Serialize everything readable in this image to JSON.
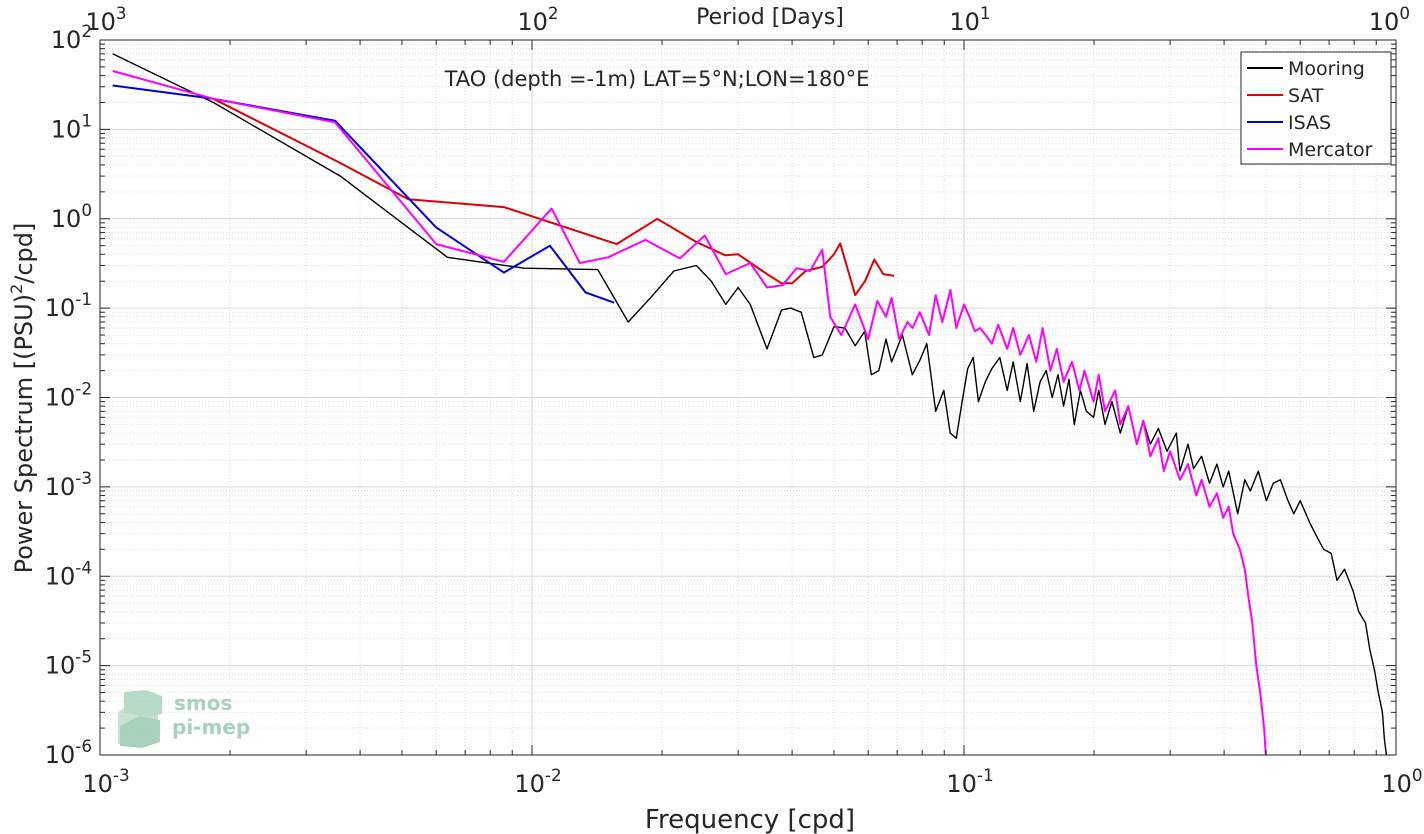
{
  "chart_data": {
    "type": "line",
    "title": "TAO (depth =-1m) LAT=5°N;LON=180°E",
    "xlabel": "Frequency [cpd]",
    "ylabel": "Power Spectrum [(PSU)",
    "ylabel_sup": "2",
    "ylabel_tail": "/cpd]",
    "top_xlabel": "Period [Days]",
    "xscale": "log",
    "yscale": "log",
    "xlim": [
      0.001,
      1
    ],
    "ylim": [
      1e-06,
      100
    ],
    "grid": true,
    "legend_position": "top-right",
    "x_ticks": [
      {
        "value": 0.001,
        "base": "10",
        "exp": "-3"
      },
      {
        "value": 0.01,
        "base": "10",
        "exp": "-2"
      },
      {
        "value": 0.1,
        "base": "10",
        "exp": "-1"
      },
      {
        "value": 1,
        "base": "10",
        "exp": "0"
      }
    ],
    "y_ticks": [
      {
        "value": 1e-06,
        "base": "10",
        "exp": "-6"
      },
      {
        "value": 1e-05,
        "base": "10",
        "exp": "-5"
      },
      {
        "value": 0.0001,
        "base": "10",
        "exp": "-4"
      },
      {
        "value": 0.001,
        "base": "10",
        "exp": "-3"
      },
      {
        "value": 0.01,
        "base": "10",
        "exp": "-2"
      },
      {
        "value": 0.1,
        "base": "10",
        "exp": "-1"
      },
      {
        "value": 1,
        "base": "10",
        "exp": "0"
      },
      {
        "value": 10,
        "base": "10",
        "exp": "1"
      },
      {
        "value": 100,
        "base": "10",
        "exp": "2"
      }
    ],
    "top_ticks": [
      {
        "value": 0.001,
        "base": "10",
        "exp": "3"
      },
      {
        "value": 0.01,
        "base": "10",
        "exp": "2"
      },
      {
        "value": 0.1,
        "base": "10",
        "exp": "1"
      },
      {
        "value": 1,
        "base": "10",
        "exp": "0"
      }
    ],
    "series": [
      {
        "name": "Mooring",
        "color": "#000000",
        "x": [
          0.00107,
          0.00183,
          0.0036,
          0.00637,
          0.0096,
          0.0142,
          0.0167,
          0.0188,
          0.0213,
          0.024,
          0.026,
          0.0281,
          0.03,
          0.032,
          0.035,
          0.0378,
          0.0397,
          0.042,
          0.0449,
          0.047,
          0.05,
          0.053,
          0.056,
          0.0589,
          0.061,
          0.0635,
          0.066,
          0.068,
          0.072,
          0.0759,
          0.079,
          0.082,
          0.086,
          0.0898,
          0.0929,
          0.096,
          0.099,
          0.102,
          0.105,
          0.108,
          0.112,
          0.116,
          0.121,
          0.1259,
          0.13,
          0.135,
          0.14,
          0.145,
          0.15,
          0.155,
          0.16,
          0.165,
          0.17,
          0.175,
          0.18,
          0.186,
          0.192,
          0.1995,
          0.205,
          0.212,
          0.22,
          0.23,
          0.24,
          0.2512,
          0.26,
          0.27,
          0.2818,
          0.295,
          0.31,
          0.3162,
          0.33,
          0.34,
          0.3548,
          0.37,
          0.385,
          0.3981,
          0.41,
          0.43,
          0.4467,
          0.46,
          0.48,
          0.5012,
          0.52,
          0.54,
          0.5623,
          0.58,
          0.6,
          0.631,
          0.65,
          0.68,
          0.708,
          0.73,
          0.76,
          0.7943,
          0.82,
          0.85,
          0.87,
          0.8913,
          0.91,
          0.93,
          0.94,
          0.95
        ],
        "y": [
          70,
          20,
          3,
          0.37,
          0.28,
          0.27,
          0.07,
          0.13,
          0.26,
          0.3,
          0.2,
          0.11,
          0.17,
          0.11,
          0.035,
          0.095,
          0.1,
          0.09,
          0.028,
          0.03,
          0.062,
          0.06,
          0.038,
          0.055,
          0.018,
          0.02,
          0.045,
          0.025,
          0.05,
          0.018,
          0.026,
          0.04,
          0.007,
          0.012,
          0.004,
          0.0035,
          0.009,
          0.021,
          0.028,
          0.009,
          0.015,
          0.021,
          0.028,
          0.012,
          0.025,
          0.009,
          0.024,
          0.007,
          0.015,
          0.02,
          0.01,
          0.018,
          0.008,
          0.016,
          0.005,
          0.012,
          0.007,
          0.006,
          0.012,
          0.005,
          0.009,
          0.004,
          0.008,
          0.003,
          0.0055,
          0.003,
          0.0045,
          0.0025,
          0.004,
          0.0015,
          0.003,
          0.0016,
          0.0022,
          0.0011,
          0.0018,
          0.001,
          0.0015,
          0.0005,
          0.0012,
          0.0009,
          0.0015,
          0.0007,
          0.0011,
          0.0012,
          0.0007,
          0.0005,
          0.0007,
          0.0004,
          0.0003,
          0.0002,
          0.00018,
          9e-05,
          0.00012,
          7e-05,
          4e-05,
          3e-05,
          1.5e-05,
          9e-06,
          5e-06,
          3e-06,
          1.5e-06,
          1e-06
        ]
      },
      {
        "name": "SAT",
        "color": "#e00000",
        "x": [
          0.00183,
          0.0036,
          0.00517,
          0.00861,
          0.0157,
          0.0195,
          0.024,
          0.028,
          0.03,
          0.035,
          0.0378,
          0.04,
          0.043,
          0.047,
          0.05,
          0.0517,
          0.056,
          0.059,
          0.062,
          0.065,
          0.0689
        ],
        "y": [
          22,
          4.2,
          1.65,
          1.35,
          0.52,
          1.0,
          0.55,
          0.39,
          0.4,
          0.24,
          0.19,
          0.19,
          0.26,
          0.29,
          0.4,
          0.53,
          0.14,
          0.2,
          0.35,
          0.24,
          0.23
        ]
      },
      {
        "name": "ISAS",
        "color": "#0000e0",
        "x": [
          0.00107,
          0.00183,
          0.0035,
          0.006,
          0.00861,
          0.011,
          0.0133,
          0.0155
        ],
        "y": [
          31,
          22,
          12.5,
          0.8,
          0.25,
          0.5,
          0.15,
          0.115
        ]
      },
      {
        "name": "Mercator",
        "color": "#ff00ff",
        "x": [
          0.00107,
          0.00183,
          0.0035,
          0.006,
          0.00861,
          0.0111,
          0.0129,
          0.015,
          0.0183,
          0.022,
          0.0251,
          0.0281,
          0.032,
          0.035,
          0.038,
          0.041,
          0.044,
          0.047,
          0.049,
          0.052,
          0.056,
          0.06,
          0.063,
          0.066,
          0.068,
          0.0708,
          0.074,
          0.076,
          0.079,
          0.083,
          0.086,
          0.0891,
          0.093,
          0.096,
          0.1,
          0.103,
          0.106,
          0.109,
          0.1122,
          0.116,
          0.12,
          0.1259,
          0.13,
          0.135,
          0.1413,
          0.147,
          0.152,
          0.1585,
          0.164,
          0.17,
          0.1778,
          0.185,
          0.19,
          0.1995,
          0.205,
          0.212,
          0.2239,
          0.23,
          0.24,
          0.2512,
          0.26,
          0.27,
          0.2818,
          0.29,
          0.3,
          0.3162,
          0.33,
          0.345,
          0.3548,
          0.37,
          0.385,
          0.3981,
          0.41,
          0.42,
          0.435,
          0.4467,
          0.455,
          0.465,
          0.475,
          0.485,
          0.495,
          0.5012
        ],
        "y": [
          45,
          22,
          12,
          0.52,
          0.33,
          1.3,
          0.32,
          0.37,
          0.58,
          0.36,
          0.65,
          0.24,
          0.32,
          0.17,
          0.18,
          0.28,
          0.26,
          0.45,
          0.08,
          0.05,
          0.11,
          0.045,
          0.12,
          0.08,
          0.13,
          0.045,
          0.07,
          0.06,
          0.09,
          0.05,
          0.14,
          0.07,
          0.16,
          0.06,
          0.11,
          0.08,
          0.055,
          0.06,
          0.05,
          0.04,
          0.065,
          0.035,
          0.06,
          0.03,
          0.05,
          0.025,
          0.06,
          0.02,
          0.035,
          0.015,
          0.025,
          0.012,
          0.02,
          0.009,
          0.018,
          0.007,
          0.012,
          0.005,
          0.008,
          0.003,
          0.0055,
          0.0022,
          0.0035,
          0.0015,
          0.0025,
          0.0012,
          0.0018,
          0.0008,
          0.0012,
          0.0006,
          0.00085,
          0.00045,
          0.0006,
          0.0003,
          0.0002,
          0.00012,
          6e-05,
          3e-05,
          1e-05,
          5e-06,
          2e-06,
          8e-07
        ]
      }
    ]
  },
  "watermark": {
    "line1": "smos",
    "line2": "pi-mep"
  }
}
